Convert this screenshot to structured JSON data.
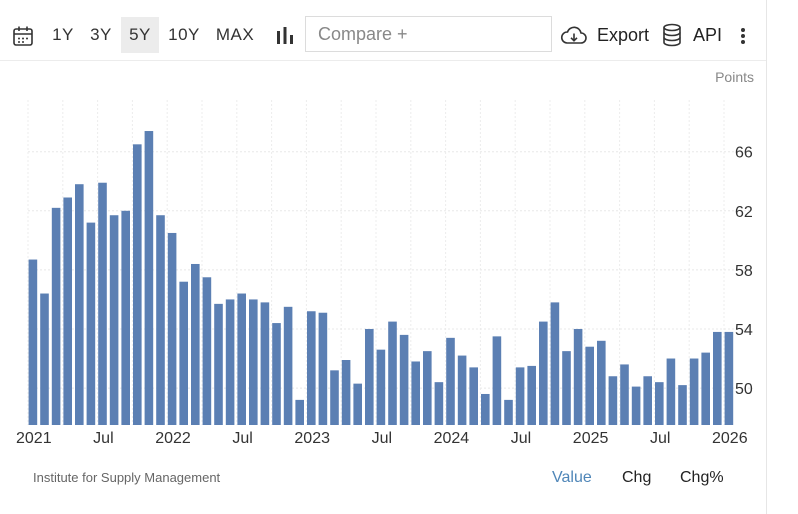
{
  "toolbar": {
    "ranges": [
      "1Y",
      "3Y",
      "5Y",
      "10Y",
      "MAX"
    ],
    "active_range": "5Y",
    "compare_placeholder": "Compare +",
    "export_label": "Export",
    "api_label": "API"
  },
  "chart_data": {
    "type": "bar",
    "unit_label": "Points",
    "ylim": [
      47.5,
      69.5
    ],
    "y_ticks": [
      50,
      54,
      58,
      62,
      66
    ],
    "x_tick_labels": [
      "2021",
      "Jul",
      "2022",
      "Jul",
      "2023",
      "Jul",
      "2024",
      "Jul",
      "2025",
      "Jul",
      "2026"
    ],
    "series": [
      {
        "name": "Value",
        "start": "2021-01",
        "values": [
          58.7,
          56.4,
          62.2,
          62.9,
          63.8,
          61.2,
          63.9,
          61.7,
          62.0,
          66.5,
          67.4,
          61.7,
          60.5,
          57.2,
          58.4,
          57.5,
          55.7,
          56.0,
          56.4,
          56.0,
          55.8,
          54.4,
          55.5,
          49.2,
          55.2,
          55.1,
          51.2,
          51.9,
          50.3,
          54.0,
          52.6,
          54.5,
          53.6,
          51.8,
          52.5,
          50.4,
          53.4,
          52.2,
          51.4,
          49.6,
          53.5,
          49.2,
          51.4,
          51.5,
          54.5,
          55.8,
          52.5,
          54.0,
          52.8,
          53.2,
          50.8,
          51.6,
          50.1,
          50.8,
          50.4,
          52.0,
          50.2,
          52.0,
          52.4,
          53.8,
          53.8
        ]
      }
    ]
  },
  "footer": {
    "source": "Institute for Supply Management",
    "tabs": [
      "Value",
      "Chg",
      "Chg%"
    ],
    "active_tab": "Value"
  }
}
